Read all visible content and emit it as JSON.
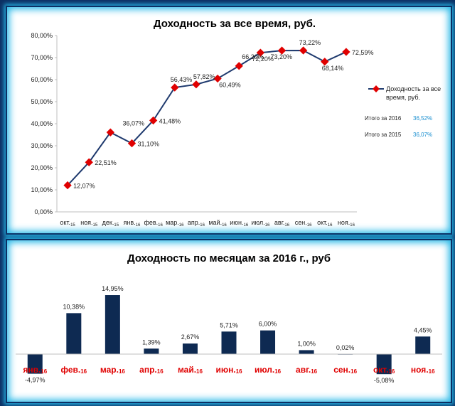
{
  "chart_data": [
    {
      "type": "line",
      "title": "Доходность за все время, руб.",
      "categories": [
        {
          "main": "окт.",
          "sub": "15"
        },
        {
          "main": "ноя.",
          "sub": "15"
        },
        {
          "main": "дек.",
          "sub": "15"
        },
        {
          "main": "янв.",
          "sub": "16"
        },
        {
          "main": "фев.",
          "sub": "16"
        },
        {
          "main": "мар.",
          "sub": "16"
        },
        {
          "main": "апр.",
          "sub": "16"
        },
        {
          "main": "май.",
          "sub": "16"
        },
        {
          "main": "июн.",
          "sub": "16"
        },
        {
          "main": "июл.",
          "sub": "16"
        },
        {
          "main": "авг.",
          "sub": "16"
        },
        {
          "main": "сен.",
          "sub": "16"
        },
        {
          "main": "окт.",
          "sub": "16"
        },
        {
          "main": "ноя.",
          "sub": "16"
        }
      ],
      "series": [
        {
          "name": "Доходность за все время, руб.",
          "values": [
            12.07,
            22.51,
            36.07,
            31.1,
            41.48,
            56.43,
            57.82,
            60.49,
            66.2,
            72.2,
            73.2,
            73.22,
            68.14,
            72.59
          ],
          "data_labels": [
            "12,07%",
            "22,51%",
            "",
            "31,10%",
            "41,48%",
            "56,43%",
            "57,82%",
            "60,49%",
            "66,20%",
            "72,20%",
            "73,20%",
            "73,22%",
            "68,14%",
            "72,59%"
          ]
        }
      ],
      "extra_labels": [
        "36,07%"
      ],
      "yticks": [
        "0,00%",
        "10,00%",
        "20,00%",
        "30,00%",
        "40,00%",
        "50,00%",
        "60,00%",
        "70,00%",
        "80,00%"
      ],
      "ylim": [
        0,
        80
      ],
      "legend_line1": "Доходность за все",
      "legend_line2": "время, руб.",
      "totals": [
        {
          "label": "Итого за 2016",
          "value": "36,52%"
        },
        {
          "label": "Итого за 2015",
          "value": "36,07%"
        }
      ],
      "line_color": "#1f3a6e",
      "marker_color": "#e00000"
    },
    {
      "type": "bar",
      "title": "Доходность по месяцам за 2016 г., руб",
      "categories": [
        {
          "main": "янв.",
          "sub": "16"
        },
        {
          "main": "фев.",
          "sub": "16"
        },
        {
          "main": "мар.",
          "sub": "16"
        },
        {
          "main": "апр.",
          "sub": "16"
        },
        {
          "main": "май.",
          "sub": "16"
        },
        {
          "main": "июн.",
          "sub": "16"
        },
        {
          "main": "июл.",
          "sub": "16"
        },
        {
          "main": "авг.",
          "sub": "16"
        },
        {
          "main": "сен.",
          "sub": "16"
        },
        {
          "main": "окт.",
          "sub": "16"
        },
        {
          "main": "ноя.",
          "sub": "16"
        }
      ],
      "values": [
        -4.97,
        10.38,
        14.95,
        1.39,
        2.67,
        5.71,
        6.0,
        1.0,
        0.02,
        -5.08,
        4.45
      ],
      "data_labels": [
        "-4,97%",
        "10,38%",
        "14,95%",
        "1,39%",
        "2,67%",
        "5,71%",
        "6,00%",
        "1,00%",
        "0,02%",
        "-5,08%",
        "4,45%"
      ],
      "bar_color": "#0e2a52",
      "category_color": "#e00000"
    }
  ]
}
